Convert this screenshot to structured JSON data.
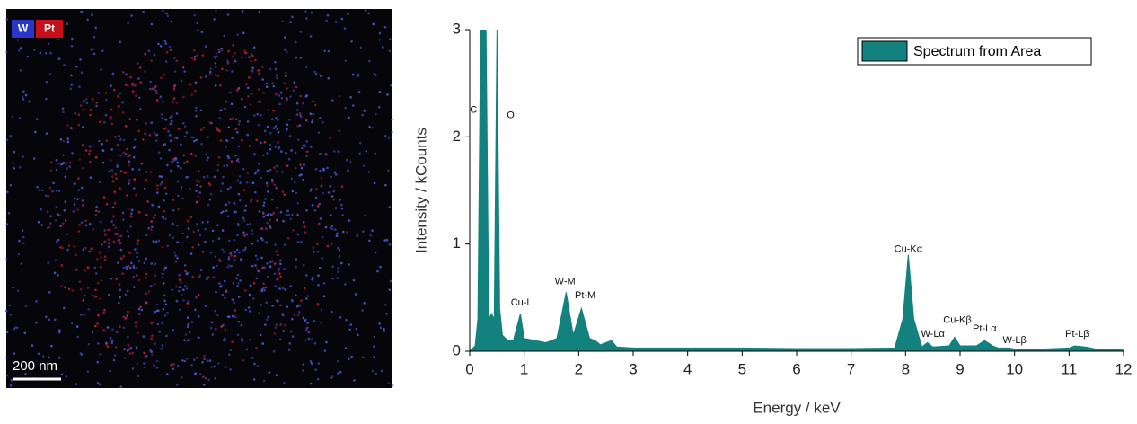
{
  "map": {
    "labels": [
      "W",
      "Pt"
    ],
    "scale_bar": "200 nm"
  },
  "chart_data": {
    "type": "area",
    "xlabel": "Energy / keV",
    "ylabel": "Intensity / kCounts",
    "x": [
      0,
      0.1,
      0.15,
      0.2,
      0.3,
      0.35,
      0.4,
      0.45,
      0.5,
      0.55,
      0.6,
      0.7,
      0.8,
      0.93,
      1.0,
      1.2,
      1.4,
      1.6,
      1.77,
      1.9,
      2.05,
      2.2,
      2.3,
      2.4,
      2.6,
      2.7,
      3,
      4,
      5,
      6,
      7,
      7.8,
      7.95,
      8.05,
      8.15,
      8.3,
      8.4,
      8.5,
      8.8,
      8.9,
      9.0,
      9.3,
      9.45,
      9.6,
      9.7,
      9.9,
      10,
      10.5,
      11,
      11.1,
      11.3,
      11.5,
      12
    ],
    "series": [
      {
        "name": "Spectrum from Area",
        "color": "#13817d",
        "values": [
          0,
          0.05,
          0.3,
          3,
          3,
          0.3,
          0.35,
          0.3,
          3,
          0.4,
          0.15,
          0.1,
          0.1,
          0.35,
          0.12,
          0.1,
          0.08,
          0.12,
          0.55,
          0.15,
          0.4,
          0.12,
          0.1,
          0.06,
          0.1,
          0.04,
          0.03,
          0.03,
          0.03,
          0.025,
          0.025,
          0.03,
          0.3,
          0.9,
          0.3,
          0.04,
          0.08,
          0.04,
          0.05,
          0.13,
          0.05,
          0.05,
          0.1,
          0.05,
          0.03,
          0.03,
          0.02,
          0.02,
          0.03,
          0.05,
          0.04,
          0.02,
          0.01
        ]
      }
    ],
    "xlim": [
      0,
      12
    ],
    "xticks": [
      0,
      1,
      2,
      3,
      4,
      5,
      6,
      7,
      8,
      9,
      10,
      11,
      12
    ],
    "ylim": [
      0,
      3
    ],
    "yticks": [
      0,
      1,
      2,
      3
    ],
    "legend": "upper right",
    "annotations": [
      {
        "text": "C",
        "x": 0.07,
        "y": 2.25
      },
      {
        "text": "O",
        "x": 0.75,
        "y": 2.2
      },
      {
        "text": "Cu-L",
        "x": 0.95,
        "y": 0.45
      },
      {
        "text": "W-M",
        "x": 1.75,
        "y": 0.65
      },
      {
        "text": "Pt-M",
        "x": 2.12,
        "y": 0.52
      },
      {
        "text": "Cu-Kα",
        "x": 8.05,
        "y": 0.95
      },
      {
        "text": "Cu-Kβ",
        "x": 8.95,
        "y": 0.29
      },
      {
        "text": "W-Lα",
        "x": 8.5,
        "y": 0.16
      },
      {
        "text": "Pt-Lα",
        "x": 9.45,
        "y": 0.21
      },
      {
        "text": "W-Lβ",
        "x": 10.0,
        "y": 0.1
      },
      {
        "text": "Pt-Lβ",
        "x": 11.15,
        "y": 0.16
      }
    ]
  }
}
